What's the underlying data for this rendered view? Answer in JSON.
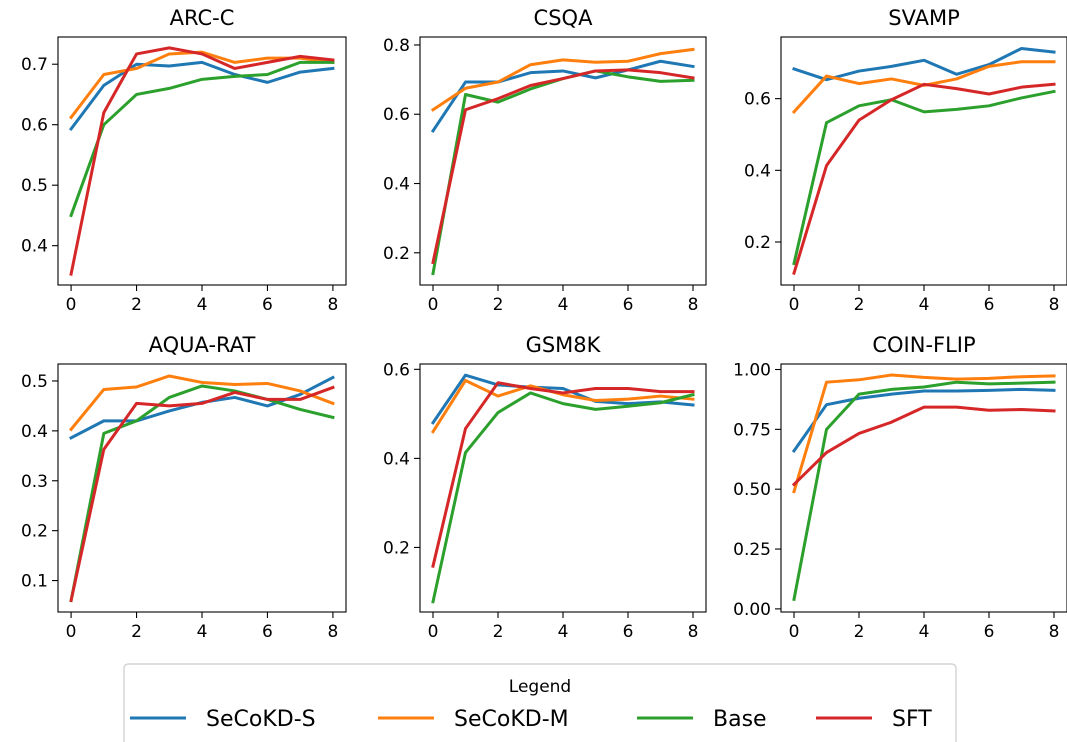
{
  "legend": {
    "title": "Legend",
    "entries": [
      "SeCoKD-S",
      "SeCoKD-M",
      "Base",
      "SFT"
    ]
  },
  "colors": {
    "SeCoKD-S": "#1f77b4",
    "SeCoKD-M": "#ff7f0e",
    "Base": "#2ca02c",
    "SFT": "#d62728"
  },
  "chart_data": [
    {
      "type": "line",
      "title": "ARC-C",
      "x": [
        0,
        1,
        2,
        3,
        4,
        5,
        6,
        7,
        8
      ],
      "xticks": [
        0,
        2,
        4,
        6,
        8
      ],
      "xlim": [
        -0.4,
        8.4
      ],
      "yticks": [
        0.4,
        0.5,
        0.6,
        0.7
      ],
      "ytick_labels": [
        "0.4",
        "0.5",
        "0.6",
        "0.7"
      ],
      "ylim": [
        0.335,
        0.745
      ],
      "series": [
        {
          "name": "SeCoKD-S",
          "values": [
            0.593,
            0.665,
            0.7,
            0.697,
            0.703,
            0.683,
            0.67,
            0.687,
            0.693
          ]
        },
        {
          "name": "SeCoKD-M",
          "values": [
            0.612,
            0.683,
            0.693,
            0.717,
            0.72,
            0.703,
            0.71,
            0.71,
            0.703
          ]
        },
        {
          "name": "Base",
          "values": [
            0.45,
            0.6,
            0.65,
            0.66,
            0.675,
            0.68,
            0.683,
            0.703,
            0.703
          ]
        },
        {
          "name": "SFT",
          "values": [
            0.353,
            0.62,
            0.717,
            0.727,
            0.717,
            0.693,
            0.703,
            0.713,
            0.707
          ]
        }
      ]
    },
    {
      "type": "line",
      "title": "CSQA",
      "x": [
        0,
        1,
        2,
        3,
        4,
        5,
        6,
        7,
        8
      ],
      "xticks": [
        0,
        2,
        4,
        6,
        8
      ],
      "xlim": [
        -0.4,
        8.4
      ],
      "yticks": [
        0.2,
        0.4,
        0.6,
        0.8
      ],
      "ytick_labels": [
        "0.2",
        "0.4",
        "0.6",
        "0.8"
      ],
      "ylim": [
        0.107,
        0.823
      ],
      "series": [
        {
          "name": "SeCoKD-S",
          "values": [
            0.552,
            0.693,
            0.693,
            0.72,
            0.725,
            0.705,
            0.728,
            0.753,
            0.738
          ]
        },
        {
          "name": "SeCoKD-M",
          "values": [
            0.613,
            0.675,
            0.693,
            0.743,
            0.757,
            0.75,
            0.753,
            0.775,
            0.787
          ]
        },
        {
          "name": "Base",
          "values": [
            0.14,
            0.657,
            0.635,
            0.673,
            0.703,
            0.725,
            0.708,
            0.695,
            0.698
          ]
        },
        {
          "name": "SFT",
          "values": [
            0.172,
            0.613,
            0.645,
            0.683,
            0.703,
            0.725,
            0.728,
            0.72,
            0.705
          ]
        }
      ]
    },
    {
      "type": "line",
      "title": "SVAMP",
      "x": [
        0,
        1,
        2,
        3,
        4,
        5,
        6,
        7,
        8
      ],
      "xticks": [
        0,
        2,
        4,
        6,
        8
      ],
      "xlim": [
        -0.4,
        8.4
      ],
      "yticks": [
        0.2,
        0.4,
        0.6
      ],
      "ytick_labels": [
        "0.2",
        "0.4",
        "0.6"
      ],
      "ylim": [
        0.08,
        0.772
      ],
      "series": [
        {
          "name": "SeCoKD-S",
          "values": [
            0.683,
            0.653,
            0.677,
            0.69,
            0.707,
            0.668,
            0.695,
            0.74,
            0.73
          ]
        },
        {
          "name": "SeCoKD-M",
          "values": [
            0.563,
            0.663,
            0.642,
            0.655,
            0.637,
            0.655,
            0.69,
            0.703,
            0.703
          ]
        },
        {
          "name": "Base",
          "values": [
            0.14,
            0.533,
            0.58,
            0.597,
            0.563,
            0.57,
            0.58,
            0.602,
            0.62
          ]
        },
        {
          "name": "SFT",
          "values": [
            0.113,
            0.413,
            0.54,
            0.597,
            0.64,
            0.628,
            0.613,
            0.632,
            0.64
          ]
        }
      ]
    },
    {
      "type": "line",
      "title": "AQUA-RAT",
      "x": [
        0,
        1,
        2,
        3,
        4,
        5,
        6,
        7,
        8
      ],
      "xticks": [
        0,
        2,
        4,
        6,
        8
      ],
      "xlim": [
        -0.4,
        8.4
      ],
      "yticks": [
        0.1,
        0.2,
        0.3,
        0.4,
        0.5
      ],
      "ytick_labels": [
        "0.1",
        "0.2",
        "0.3",
        "0.4",
        "0.5"
      ],
      "ylim": [
        0.037,
        0.534
      ],
      "series": [
        {
          "name": "SeCoKD-S",
          "values": [
            0.386,
            0.42,
            0.42,
            0.44,
            0.457,
            0.467,
            0.45,
            0.473,
            0.507
          ]
        },
        {
          "name": "SeCoKD-M",
          "values": [
            0.403,
            0.483,
            0.488,
            0.51,
            0.497,
            0.493,
            0.495,
            0.48,
            0.455
          ]
        },
        {
          "name": "Base",
          "values": [
            0.06,
            0.395,
            0.42,
            0.467,
            0.49,
            0.48,
            0.463,
            0.443,
            0.427
          ]
        },
        {
          "name": "SFT",
          "values": [
            0.06,
            0.363,
            0.455,
            0.45,
            0.455,
            0.477,
            0.463,
            0.463,
            0.487
          ]
        }
      ]
    },
    {
      "type": "line",
      "title": "GSM8K",
      "x": [
        0,
        1,
        2,
        3,
        4,
        5,
        6,
        7,
        8
      ],
      "xticks": [
        0,
        2,
        4,
        6,
        8
      ],
      "xlim": [
        -0.4,
        8.4
      ],
      "yticks": [
        0.2,
        0.4,
        0.6
      ],
      "ytick_labels": [
        "0.2",
        "0.4",
        "0.6"
      ],
      "ylim": [
        0.055,
        0.612
      ],
      "series": [
        {
          "name": "SeCoKD-S",
          "values": [
            0.48,
            0.587,
            0.565,
            0.56,
            0.557,
            0.528,
            0.523,
            0.527,
            0.52
          ]
        },
        {
          "name": "SeCoKD-M",
          "values": [
            0.46,
            0.575,
            0.54,
            0.563,
            0.543,
            0.53,
            0.533,
            0.54,
            0.533
          ]
        },
        {
          "name": "Base",
          "values": [
            0.078,
            0.413,
            0.503,
            0.547,
            0.523,
            0.51,
            0.517,
            0.525,
            0.543
          ]
        },
        {
          "name": "SFT",
          "values": [
            0.158,
            0.467,
            0.57,
            0.557,
            0.547,
            0.557,
            0.557,
            0.55,
            0.55
          ]
        }
      ]
    },
    {
      "type": "line",
      "title": "COIN-FLIP",
      "x": [
        0,
        1,
        2,
        3,
        4,
        5,
        6,
        7,
        8
      ],
      "xticks": [
        0,
        2,
        4,
        6,
        8
      ],
      "xlim": [
        -0.4,
        8.4
      ],
      "yticks": [
        0.0,
        0.25,
        0.5,
        0.75,
        1.0
      ],
      "ytick_labels": [
        "0.00",
        "0.25",
        "0.50",
        "0.75",
        "1.00"
      ],
      "ylim": [
        -0.013,
        1.023
      ],
      "series": [
        {
          "name": "SeCoKD-S",
          "values": [
            0.66,
            0.853,
            0.88,
            0.897,
            0.91,
            0.91,
            0.913,
            0.917,
            0.913
          ]
        },
        {
          "name": "SeCoKD-M",
          "values": [
            0.49,
            0.947,
            0.957,
            0.977,
            0.967,
            0.96,
            0.963,
            0.97,
            0.973
          ]
        },
        {
          "name": "Base",
          "values": [
            0.04,
            0.75,
            0.897,
            0.917,
            0.927,
            0.947,
            0.94,
            0.943,
            0.947
          ]
        },
        {
          "name": "SFT",
          "values": [
            0.52,
            0.653,
            0.733,
            0.78,
            0.843,
            0.843,
            0.83,
            0.833,
            0.827
          ]
        }
      ]
    }
  ]
}
